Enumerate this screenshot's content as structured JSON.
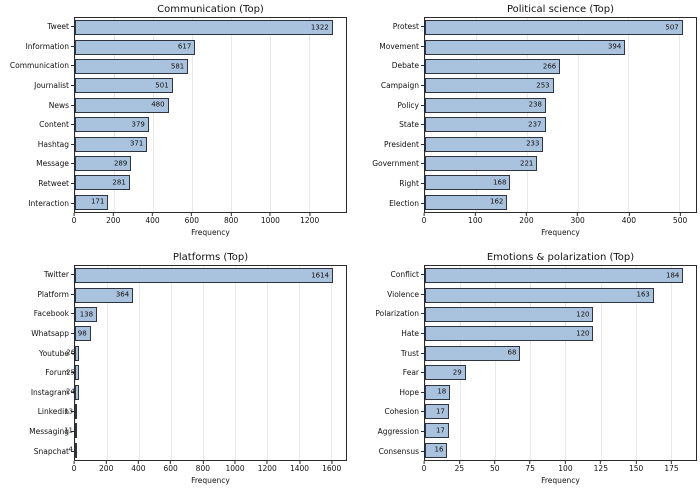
{
  "style": {
    "bar_fill": "#a9c3de",
    "bar_edge": "#2e3440",
    "grid_color": "#e9e9e9",
    "spine_color": "#2b2b2b",
    "background": "#ffffff"
  },
  "chart_data": [
    {
      "id": "communication",
      "type": "bar",
      "orientation": "horizontal",
      "title": "Communication (Top)",
      "xlabel": "Frequency",
      "categories": [
        "Tweet",
        "Information",
        "Communication",
        "Journalist",
        "News",
        "Content",
        "Hashtag",
        "Message",
        "Retweet",
        "Interaction"
      ],
      "values": [
        1322,
        617,
        581,
        501,
        480,
        379,
        371,
        289,
        281,
        171
      ],
      "xticks": [
        0,
        200,
        400,
        600,
        800,
        1000,
        1200
      ],
      "xlim": [
        0,
        1390
      ],
      "grid": true,
      "value_labels": true
    },
    {
      "id": "political-science",
      "type": "bar",
      "orientation": "horizontal",
      "title": "Political science (Top)",
      "xlabel": "Frequency",
      "categories": [
        "Protest",
        "Movement",
        "Debate",
        "Campaign",
        "Policy",
        "State",
        "President",
        "Government",
        "Right",
        "Election"
      ],
      "values": [
        507,
        394,
        266,
        253,
        238,
        237,
        233,
        221,
        168,
        162
      ],
      "xticks": [
        0,
        100,
        200,
        300,
        400,
        500
      ],
      "xlim": [
        0,
        533
      ],
      "grid": true,
      "value_labels": true
    },
    {
      "id": "platforms",
      "type": "bar",
      "orientation": "horizontal",
      "title": "Platforms (Top)",
      "xlabel": "Frequency",
      "categories": [
        "Twitter",
        "Platform",
        "Facebook",
        "Whatsapp",
        "Youtube",
        "Forum",
        "Instagram",
        "Linkedin",
        "Messaging",
        "Snapchat"
      ],
      "values": [
        1614,
        364,
        138,
        98,
        26,
        25,
        24,
        13,
        11,
        4
      ],
      "xticks": [
        0,
        200,
        400,
        600,
        800,
        1000,
        1200,
        1400,
        1600
      ],
      "xlim": [
        0,
        1695
      ],
      "grid": true,
      "value_labels": true
    },
    {
      "id": "emotions-polarization",
      "type": "bar",
      "orientation": "horizontal",
      "title": "Emotions & polarization (Top)",
      "xlabel": "Frequency",
      "categories": [
        "Conflict",
        "Violence",
        "Polarization",
        "Hate",
        "Trust",
        "Fear",
        "Hope",
        "Cohesion",
        "Aggression",
        "Consensus"
      ],
      "values": [
        184,
        163,
        120,
        120,
        68,
        29,
        18,
        17,
        17,
        16
      ],
      "xticks": [
        0,
        25,
        50,
        75,
        100,
        125,
        150,
        175
      ],
      "xlim": [
        0,
        193
      ],
      "grid": true,
      "value_labels": true
    }
  ]
}
